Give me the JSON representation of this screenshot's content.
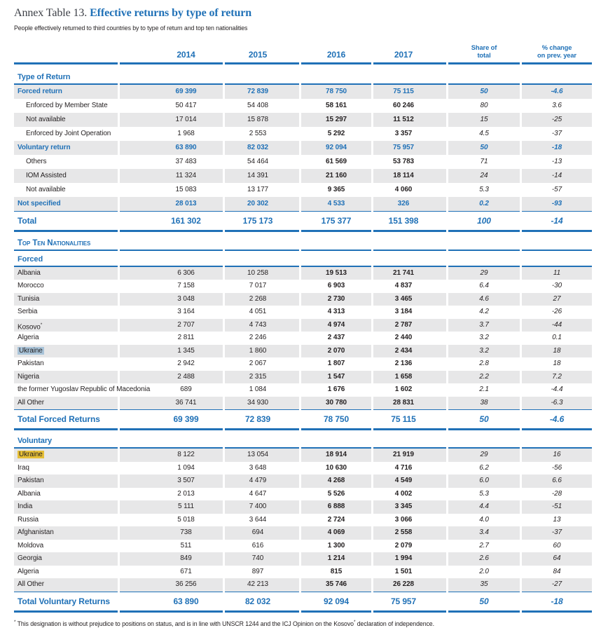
{
  "page": {
    "title_prefix": "Annex Table 13.",
    "title": "Effective returns by type of return",
    "subtitle": "People effectively returned to third countries by to type of return and top ten nationalities",
    "footnote": {
      "lead_symbol": "*",
      "part1": "This designation is without prejudice to positions on status, and is in line with UNSCR 1244 and the ICJ Opinion on the Kosovo",
      "kosovo_sup": "*",
      "part2": "declaration of independence."
    }
  },
  "colors": {
    "accent_blue": "#2071b7",
    "row_shade": "#e7e7e8",
    "highlight_blue": "#a9c4d9",
    "highlight_yellow": "#e6bf37",
    "text_dark": "#231f20"
  },
  "table": {
    "year_headers": [
      "2014",
      "2015",
      "2016",
      "2017"
    ],
    "share_header": [
      "Share of",
      "total"
    ],
    "change_header": [
      "% change",
      "on prev. year"
    ],
    "sections": [
      {
        "title": "Type of Return",
        "row_h": "r20",
        "gap_after": 8,
        "rows": [
          {
            "label": "Forced return",
            "style": "blue",
            "shaded": true,
            "values": [
              "69 399",
              "72 839",
              "78 750",
              "75 115",
              "50",
              "-4.6"
            ]
          },
          {
            "label": "Enforced by Member State",
            "indent": true,
            "shaded": false,
            "values": [
              "50 417",
              "54 408",
              "58 161",
              "60 246",
              "80",
              "3.6"
            ]
          },
          {
            "label": "Not available",
            "indent": true,
            "shaded": true,
            "values": [
              "17 014",
              "15 878",
              "15 297",
              "11 512",
              "15",
              "-25"
            ]
          },
          {
            "label": "Enforced by Joint Operation",
            "indent": true,
            "shaded": false,
            "values": [
              "1 968",
              "2 553",
              "5 292",
              "3 357",
              "4.5",
              "-37"
            ]
          },
          {
            "label": "Voluntary return",
            "style": "blue",
            "shaded": true,
            "values": [
              "63 890",
              "82 032",
              "92 094",
              "75 957",
              "50",
              "-18"
            ]
          },
          {
            "label": "Others",
            "indent": true,
            "shaded": false,
            "values": [
              "37 483",
              "54 464",
              "61 569",
              "53 783",
              "71",
              "-13"
            ]
          },
          {
            "label": "IOM Assisted",
            "indent": true,
            "shaded": true,
            "values": [
              "11 324",
              "14 391",
              "21 160",
              "18 114",
              "24",
              "-14"
            ]
          },
          {
            "label": "Not available",
            "indent": true,
            "shaded": false,
            "values": [
              "15 083",
              "13 177",
              "9 365",
              "4 060",
              "5.3",
              "-57"
            ]
          },
          {
            "label": "Not specified",
            "style": "blue",
            "shaded": true,
            "values": [
              "28 013",
              "20 302",
              "4 533",
              "326",
              "0.2",
              "-93"
            ]
          }
        ],
        "total": {
          "label": "Total",
          "values": [
            "161 302",
            "175 173",
            "175 377",
            "151 398",
            "100",
            "-14"
          ]
        }
      },
      {
        "banner_before": "Top Ten Nationalities",
        "title": "Forced",
        "row_h": "r18",
        "gap_after": 7,
        "rows": [
          {
            "label": "Albania",
            "shaded": true,
            "values": [
              "6 306",
              "10 258",
              "19 513",
              "21 741",
              "29",
              "11"
            ]
          },
          {
            "label": "Morocco",
            "shaded": false,
            "values": [
              "7 158",
              "7 017",
              "6 903",
              "4 837",
              "6.4",
              "-30"
            ]
          },
          {
            "label": "Tunisia",
            "shaded": true,
            "values": [
              "3 048",
              "2 268",
              "2 730",
              "3 465",
              "4.6",
              "27"
            ]
          },
          {
            "label": "Serbia",
            "shaded": false,
            "values": [
              "3 164",
              "4 051",
              "4 313",
              "3 184",
              "4.2",
              "-26"
            ]
          },
          {
            "label": "Kosovo",
            "label_sup": "*",
            "shaded": true,
            "values": [
              "2 707",
              "4 743",
              "4 974",
              "2 787",
              "3.7",
              "-44"
            ]
          },
          {
            "label": "Algeria",
            "shaded": false,
            "values": [
              "2 811",
              "2 246",
              "2 437",
              "2 440",
              "3.2",
              "0.1"
            ]
          },
          {
            "label": "Ukraine",
            "highlight": "blue",
            "shaded": true,
            "values": [
              "1 345",
              "1 860",
              "2 070",
              "2 434",
              "3.2",
              "18"
            ]
          },
          {
            "label": "Pakistan",
            "shaded": false,
            "values": [
              "2 942",
              "2 067",
              "1 807",
              "2 136",
              "2.8",
              "18"
            ]
          },
          {
            "label": "Nigeria",
            "shaded": true,
            "values": [
              "2 488",
              "2 315",
              "1 547",
              "1 658",
              "2.2",
              "7.2"
            ]
          },
          {
            "label": "the former Yugoslav Republic of Macedonia",
            "shaded": false,
            "values": [
              "689",
              "1 084",
              "1 676",
              "1 602",
              "2.1",
              "-4.4"
            ]
          },
          {
            "label": "All Other",
            "shaded": true,
            "values": [
              "36 741",
              "34 930",
              "30 780",
              "28 831",
              "38",
              "-6.3"
            ]
          }
        ],
        "total": {
          "label": "Total Forced Returns",
          "values": [
            "69 399",
            "72 839",
            "78 750",
            "75 115",
            "50",
            "-4.6"
          ]
        }
      },
      {
        "title": "Voluntary",
        "row_h": "r18",
        "gap_after": 0,
        "rows": [
          {
            "label": "Ukraine",
            "highlight": "yellow",
            "shaded": true,
            "values": [
              "8 122",
              "13 054",
              "18 914",
              "21 919",
              "29",
              "16"
            ]
          },
          {
            "label": "Iraq",
            "shaded": false,
            "values": [
              "1 094",
              "3 648",
              "10 630",
              "4 716",
              "6.2",
              "-56"
            ]
          },
          {
            "label": "Pakistan",
            "shaded": true,
            "values": [
              "3 507",
              "4 479",
              "4 268",
              "4 549",
              "6.0",
              "6.6"
            ]
          },
          {
            "label": "Albania",
            "shaded": false,
            "values": [
              "2 013",
              "4 647",
              "5 526",
              "4 002",
              "5.3",
              "-28"
            ]
          },
          {
            "label": "India",
            "shaded": true,
            "values": [
              "5 111",
              "7 400",
              "6 888",
              "3 345",
              "4.4",
              "-51"
            ]
          },
          {
            "label": "Russia",
            "shaded": false,
            "values": [
              "5 018",
              "3 644",
              "2 724",
              "3 066",
              "4.0",
              "13"
            ]
          },
          {
            "label": "Afghanistan",
            "shaded": true,
            "values": [
              "738",
              "694",
              "4 069",
              "2 558",
              "3.4",
              "-37"
            ]
          },
          {
            "label": "Moldova",
            "shaded": false,
            "values": [
              "511",
              "616",
              "1 300",
              "2 079",
              "2.7",
              "60"
            ]
          },
          {
            "label": "Georgia",
            "shaded": true,
            "values": [
              "849",
              "740",
              "1 214",
              "1 994",
              "2.6",
              "64"
            ]
          },
          {
            "label": "Algeria",
            "shaded": false,
            "values": [
              "671",
              "897",
              "815",
              "1 501",
              "2.0",
              "84"
            ]
          },
          {
            "label": "All Other",
            "shaded": true,
            "values": [
              "36 256",
              "42 213",
              "35 746",
              "26 228",
              "35",
              "-27"
            ]
          }
        ],
        "total": {
          "label": "Total Voluntary Returns",
          "values": [
            "63 890",
            "82 032",
            "92 094",
            "75 957",
            "50",
            "-18"
          ]
        }
      }
    ]
  }
}
